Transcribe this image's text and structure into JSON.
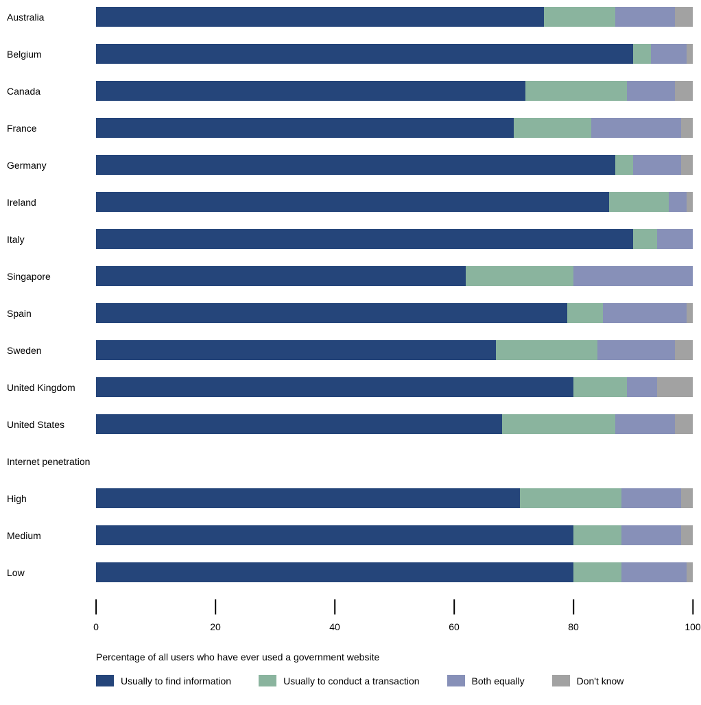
{
  "chart": {
    "type": "stacked-horizontal-bar",
    "xmax": 100,
    "background_color": "#ffffff",
    "series": [
      {
        "key": "info",
        "label": "Usually to find information",
        "color": "#25457a"
      },
      {
        "key": "trans",
        "label": "Usually to conduct a transaction",
        "color": "#8ab49e"
      },
      {
        "key": "both",
        "label": "Both equally",
        "color": "#8790b8"
      },
      {
        "key": "dk",
        "label": "Don't know",
        "color": "#a2a2a2"
      }
    ],
    "countries": [
      {
        "label": "Australia",
        "values": {
          "info": 75,
          "trans": 12,
          "both": 10,
          "dk": 3
        }
      },
      {
        "label": "Belgium",
        "values": {
          "info": 90,
          "trans": 3,
          "both": 6,
          "dk": 1
        }
      },
      {
        "label": "Canada",
        "values": {
          "info": 72,
          "trans": 17,
          "both": 8,
          "dk": 3
        }
      },
      {
        "label": "France",
        "values": {
          "info": 70,
          "trans": 13,
          "both": 15,
          "dk": 2
        }
      },
      {
        "label": "Germany",
        "values": {
          "info": 87,
          "trans": 3,
          "both": 8,
          "dk": 2
        }
      },
      {
        "label": "Ireland",
        "values": {
          "info": 86,
          "trans": 10,
          "both": 3,
          "dk": 1
        }
      },
      {
        "label": "Italy",
        "values": {
          "info": 90,
          "trans": 4,
          "both": 6,
          "dk": 0
        }
      },
      {
        "label": "Singapore",
        "values": {
          "info": 62,
          "trans": 18,
          "both": 20,
          "dk": 0
        }
      },
      {
        "label": "Spain",
        "values": {
          "info": 79,
          "trans": 6,
          "both": 14,
          "dk": 1
        }
      },
      {
        "label": "Sweden",
        "values": {
          "info": 67,
          "trans": 17,
          "both": 13,
          "dk": 3
        }
      },
      {
        "label": "United Kingdom",
        "values": {
          "info": 80,
          "trans": 9,
          "both": 5,
          "dk": 6
        }
      },
      {
        "label": "United States",
        "values": {
          "info": 68,
          "trans": 19,
          "both": 10,
          "dk": 3
        }
      }
    ],
    "section_header": "Internet penetration",
    "penetration": [
      {
        "label": "High",
        "values": {
          "info": 71,
          "trans": 17,
          "both": 10,
          "dk": 2
        }
      },
      {
        "label": "Medium",
        "values": {
          "info": 80,
          "trans": 8,
          "both": 10,
          "dk": 2
        }
      },
      {
        "label": "Low",
        "values": {
          "info": 80,
          "trans": 8,
          "both": 11,
          "dk": 1
        }
      }
    ],
    "axis": {
      "ticks": [
        0,
        20,
        40,
        60,
        80,
        100
      ],
      "title": "Percentage of all users who have ever used a government website"
    }
  }
}
